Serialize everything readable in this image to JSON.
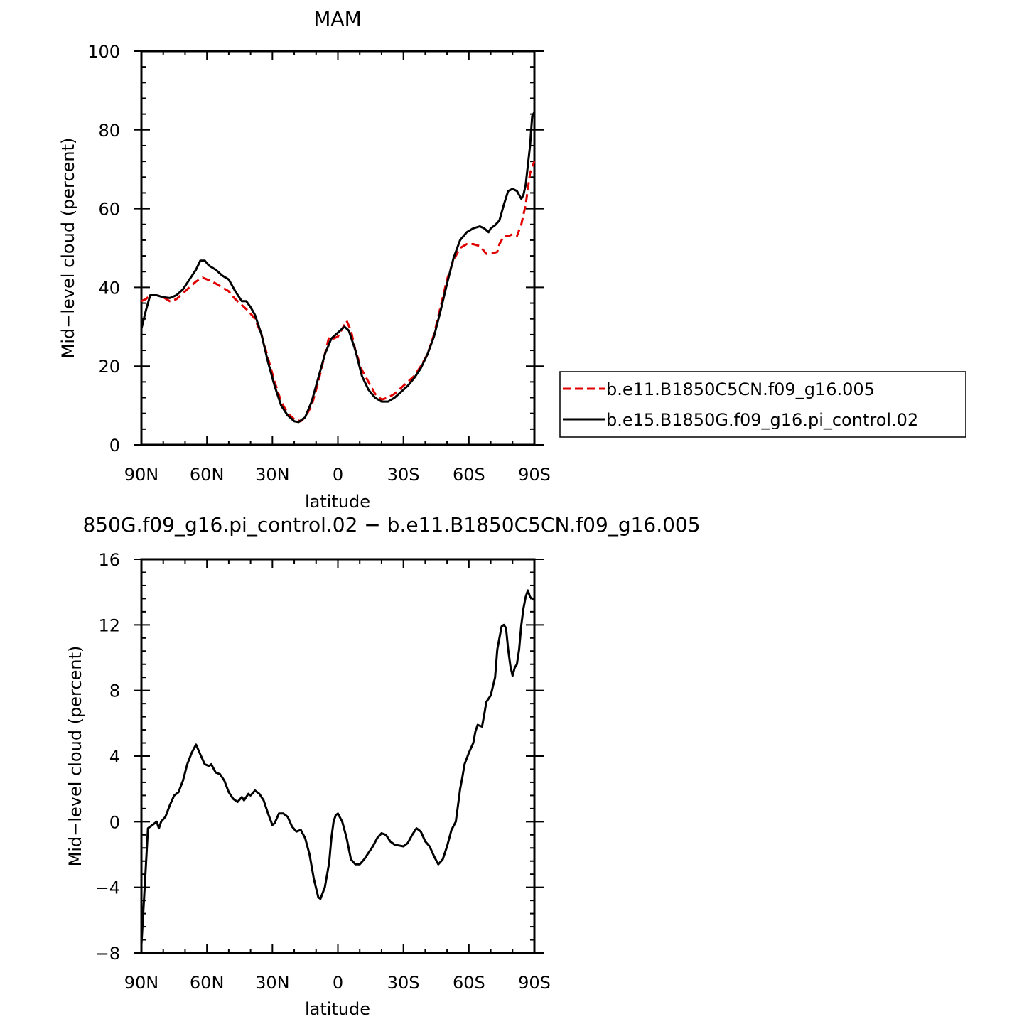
{
  "chart_data": [
    {
      "type": "line",
      "title": "MAM",
      "xlabel": "latitude",
      "ylabel": "Mid−level cloud (percent)",
      "x_range": [
        90,
        -90
      ],
      "x_ticks": [
        90,
        60,
        30,
        0,
        -30,
        -60,
        -90
      ],
      "x_tick_labels": [
        "90N",
        "60N",
        "30N",
        "0",
        "30S",
        "60S",
        "90S"
      ],
      "ylim": [
        0,
        100
      ],
      "y_ticks": [
        0,
        20,
        40,
        60,
        80,
        100
      ],
      "y_tick_labels": [
        "0",
        "20",
        "40",
        "60",
        "80",
        "100"
      ],
      "legend_position": "right",
      "series": [
        {
          "name": "b.e11.B1850C5CN.f09_g16.005",
          "color": "#e00000",
          "style": "dashed",
          "points": [
            [
              90,
              36.5
            ],
            [
              88,
              37
            ],
            [
              86,
              38
            ],
            [
              83,
              38
            ],
            [
              80,
              37.5
            ],
            [
              77,
              36.5
            ],
            [
              74,
              37
            ],
            [
              71,
              38.5
            ],
            [
              68,
              40
            ],
            [
              65,
              41.5
            ],
            [
              62,
              42.5
            ],
            [
              59,
              41.8
            ],
            [
              56,
              41
            ],
            [
              53,
              40
            ],
            [
              50,
              39
            ],
            [
              47,
              37
            ],
            [
              44,
              35.5
            ],
            [
              41,
              34
            ],
            [
              38,
              32
            ],
            [
              35,
              28
            ],
            [
              32,
              22
            ],
            [
              29,
              16
            ],
            [
              26,
              11
            ],
            [
              23,
              8
            ],
            [
              20,
              6.5
            ],
            [
              17,
              6
            ],
            [
              15,
              7
            ],
            [
              12,
              10
            ],
            [
              9,
              16
            ],
            [
              6,
              23
            ],
            [
              4,
              27.5
            ],
            [
              2,
              27
            ],
            [
              0,
              27.5
            ],
            [
              -2,
              29.5
            ],
            [
              -4,
              31.5
            ],
            [
              -6,
              29
            ],
            [
              -8,
              24
            ],
            [
              -11,
              19
            ],
            [
              -14,
              16
            ],
            [
              -17,
              13
            ],
            [
              -20,
              11.5
            ],
            [
              -23,
              12
            ],
            [
              -26,
              13
            ],
            [
              -29,
              14.5
            ],
            [
              -32,
              16
            ],
            [
              -35,
              17.5
            ],
            [
              -38,
              20
            ],
            [
              -41,
              23
            ],
            [
              -44,
              28
            ],
            [
              -47,
              35
            ],
            [
              -50,
              42
            ],
            [
              -53,
              47
            ],
            [
              -56,
              50
            ],
            [
              -59,
              51
            ],
            [
              -62,
              51
            ],
            [
              -65,
              50.5
            ],
            [
              -68,
              48.5
            ],
            [
              -70,
              48.5
            ],
            [
              -73,
              49
            ],
            [
              -74,
              51
            ],
            [
              -76,
              53
            ],
            [
              -78,
              53
            ],
            [
              -80,
              53.5
            ],
            [
              -82,
              53
            ],
            [
              -84,
              56
            ],
            [
              -86,
              61
            ],
            [
              -88,
              69
            ],
            [
              -90,
              72
            ]
          ]
        },
        {
          "name": "b.e15.B1850G.f09_g16.pi_control.02",
          "color": "#000000",
          "style": "solid",
          "points": [
            [
              90,
              29.5
            ],
            [
              88,
              34
            ],
            [
              86,
              38
            ],
            [
              83,
              38
            ],
            [
              80,
              37.5
            ],
            [
              77,
              37.3
            ],
            [
              74,
              38
            ],
            [
              71,
              39.5
            ],
            [
              68,
              42
            ],
            [
              65,
              44.5
            ],
            [
              63,
              46.8
            ],
            [
              61,
              46.8
            ],
            [
              59,
              45.5
            ],
            [
              56,
              44.5
            ],
            [
              53,
              43
            ],
            [
              50,
              42
            ],
            [
              47,
              39
            ],
            [
              44,
              36.5
            ],
            [
              42,
              36.5
            ],
            [
              40,
              35
            ],
            [
              38,
              33
            ],
            [
              35,
              28
            ],
            [
              32,
              21
            ],
            [
              29,
              15
            ],
            [
              26,
              10
            ],
            [
              23,
              7.5
            ],
            [
              20,
              6
            ],
            [
              18,
              5.8
            ],
            [
              15,
              7
            ],
            [
              12,
              11
            ],
            [
              9,
              17
            ],
            [
              6,
              23
            ],
            [
              3,
              27
            ],
            [
              0,
              28.5
            ],
            [
              -3,
              30
            ],
            [
              -5,
              29
            ],
            [
              -8,
              24
            ],
            [
              -11,
              17.5
            ],
            [
              -14,
              14
            ],
            [
              -17,
              12
            ],
            [
              -20,
              11
            ],
            [
              -23,
              11
            ],
            [
              -26,
              12
            ],
            [
              -29,
              13.5
            ],
            [
              -32,
              15
            ],
            [
              -35,
              17
            ],
            [
              -38,
              19.5
            ],
            [
              -41,
              23
            ],
            [
              -44,
              27.5
            ],
            [
              -47,
              34
            ],
            [
              -50,
              41
            ],
            [
              -53,
              47.5
            ],
            [
              -56,
              52
            ],
            [
              -59,
              54
            ],
            [
              -62,
              55
            ],
            [
              -65,
              55.5
            ],
            [
              -67,
              55
            ],
            [
              -69,
              54
            ],
            [
              -70,
              55
            ],
            [
              -72,
              55.8
            ],
            [
              -74,
              57
            ],
            [
              -76,
              61
            ],
            [
              -78,
              64.5
            ],
            [
              -80,
              65
            ],
            [
              -82,
              64.5
            ],
            [
              -84,
              62.5
            ],
            [
              -85,
              63.5
            ],
            [
              -86,
              66
            ],
            [
              -87,
              71
            ],
            [
              -88,
              76
            ],
            [
              -89,
              83.5
            ],
            [
              -90,
              84.5
            ]
          ]
        }
      ]
    },
    {
      "type": "line",
      "title": "850G.f09_g16.pi_control.02 − b.e11.B1850C5CN.f09_g16.005",
      "xlabel": "latitude",
      "ylabel": "Mid−level cloud (percent)",
      "x_range": [
        90,
        -90
      ],
      "x_ticks": [
        90,
        60,
        30,
        0,
        -30,
        -60,
        -90
      ],
      "x_tick_labels": [
        "90N",
        "60N",
        "30N",
        "0",
        "30S",
        "60S",
        "90S"
      ],
      "ylim": [
        -8,
        16
      ],
      "y_ticks": [
        -8,
        -4,
        0,
        4,
        8,
        12,
        16
      ],
      "y_tick_labels": [
        "−8",
        "−4",
        "0",
        "4",
        "8",
        "12",
        "16"
      ],
      "series": [
        {
          "color": "#000000",
          "style": "solid",
          "points": [
            [
              90,
              -7.5
            ],
            [
              88.5,
              -4
            ],
            [
              87,
              -0.4
            ],
            [
              85,
              -0.2
            ],
            [
              83,
              0
            ],
            [
              82,
              -0.4
            ],
            [
              81,
              0
            ],
            [
              79,
              0.3
            ],
            [
              77,
              1
            ],
            [
              75,
              1.6
            ],
            [
              73,
              1.8
            ],
            [
              71,
              2.5
            ],
            [
              69,
              3.5
            ],
            [
              67,
              4.2
            ],
            [
              65,
              4.7
            ],
            [
              63,
              4.1
            ],
            [
              61,
              3.5
            ],
            [
              59,
              3.4
            ],
            [
              58,
              3.5
            ],
            [
              56,
              3
            ],
            [
              54,
              2.9
            ],
            [
              52,
              2.5
            ],
            [
              50,
              1.8
            ],
            [
              48,
              1.4
            ],
            [
              46,
              1.2
            ],
            [
              44,
              1.5
            ],
            [
              43,
              1.3
            ],
            [
              41,
              1.7
            ],
            [
              40,
              1.6
            ],
            [
              38,
              1.9
            ],
            [
              36,
              1.7
            ],
            [
              34,
              1.3
            ],
            [
              32,
              0.5
            ],
            [
              30,
              -0.2
            ],
            [
              29,
              -0.1
            ],
            [
              27,
              0.5
            ],
            [
              25,
              0.5
            ],
            [
              23,
              0.3
            ],
            [
              21,
              -0.3
            ],
            [
              19,
              -0.6
            ],
            [
              17,
              -0.5
            ],
            [
              15,
              -1
            ],
            [
              13,
              -2
            ],
            [
              11,
              -3.5
            ],
            [
              9,
              -4.6
            ],
            [
              8,
              -4.7
            ],
            [
              6,
              -4
            ],
            [
              4,
              -2.5
            ],
            [
              3,
              -1
            ],
            [
              2,
              0
            ],
            [
              1,
              0.4
            ],
            [
              0,
              0.5
            ],
            [
              -2,
              0
            ],
            [
              -4,
              -1
            ],
            [
              -6,
              -2.3
            ],
            [
              -8,
              -2.6
            ],
            [
              -10,
              -2.6
            ],
            [
              -12,
              -2.3
            ],
            [
              -14,
              -1.9
            ],
            [
              -16,
              -1.5
            ],
            [
              -18,
              -1
            ],
            [
              -20,
              -0.7
            ],
            [
              -22,
              -0.8
            ],
            [
              -24,
              -1.2
            ],
            [
              -26,
              -1.4
            ],
            [
              -28,
              -1.45
            ],
            [
              -30,
              -1.5
            ],
            [
              -32,
              -1.3
            ],
            [
              -34,
              -0.8
            ],
            [
              -36,
              -0.4
            ],
            [
              -38,
              -0.6
            ],
            [
              -40,
              -1.2
            ],
            [
              -42,
              -1.5
            ],
            [
              -44,
              -2.1
            ],
            [
              -46,
              -2.6
            ],
            [
              -48,
              -2.3
            ],
            [
              -50,
              -1.5
            ],
            [
              -52,
              -0.5
            ],
            [
              -54,
              0
            ],
            [
              -55,
              1
            ],
            [
              -56,
              2
            ],
            [
              -57,
              2.7
            ],
            [
              -58,
              3.5
            ],
            [
              -60,
              4.2
            ],
            [
              -62,
              4.8
            ],
            [
              -63,
              5.5
            ],
            [
              -64,
              5.9
            ],
            [
              -66,
              5.8
            ],
            [
              -67,
              6.5
            ],
            [
              -68,
              7.3
            ],
            [
              -70,
              7.7
            ],
            [
              -72,
              8.8
            ],
            [
              -73,
              10.5
            ],
            [
              -74,
              11.2
            ],
            [
              -75,
              11.9
            ],
            [
              -76,
              12
            ],
            [
              -77,
              11.8
            ],
            [
              -78,
              10.5
            ],
            [
              -79,
              9.5
            ],
            [
              -80,
              8.9
            ],
            [
              -81,
              9.4
            ],
            [
              -82,
              9.6
            ],
            [
              -83,
              10.5
            ],
            [
              -84,
              12
            ],
            [
              -85,
              13
            ],
            [
              -86,
              13.7
            ],
            [
              -87,
              14.1
            ],
            [
              -88,
              13.7
            ],
            [
              -90,
              13.5
            ]
          ]
        }
      ]
    }
  ]
}
